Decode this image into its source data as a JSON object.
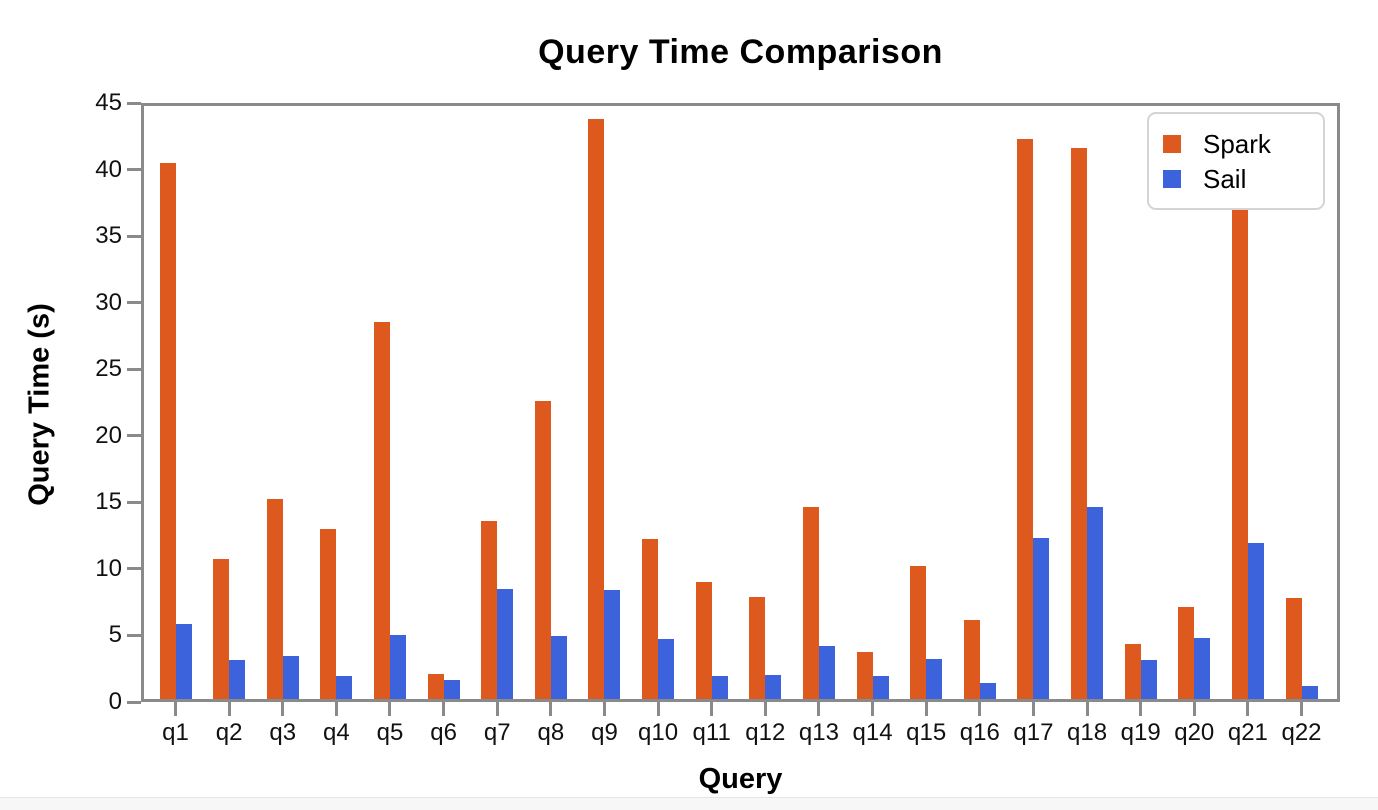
{
  "chart_data": {
    "type": "bar",
    "title": "Query Time Comparison",
    "xlabel": "Query",
    "ylabel": "Query Time (s)",
    "categories": [
      "q1",
      "q2",
      "q3",
      "q4",
      "q5",
      "q6",
      "q7",
      "q8",
      "q9",
      "q10",
      "q11",
      "q12",
      "q13",
      "q14",
      "q15",
      "q16",
      "q17",
      "q18",
      "q19",
      "q20",
      "q21",
      "q22"
    ],
    "series": [
      {
        "name": "Spark",
        "color": "#de591d",
        "values": [
          40.3,
          10.5,
          15.0,
          12.8,
          28.3,
          1.9,
          13.4,
          22.4,
          43.6,
          12.0,
          8.8,
          7.7,
          14.4,
          3.5,
          10.0,
          5.9,
          42.1,
          41.4,
          4.1,
          6.9,
          37.4,
          7.6
        ]
      },
      {
        "name": "Sail",
        "color": "#3d63dc",
        "values": [
          5.6,
          2.9,
          3.2,
          1.7,
          4.8,
          1.4,
          8.3,
          4.7,
          8.2,
          4.5,
          1.7,
          1.8,
          4.0,
          1.7,
          3.0,
          1.2,
          12.1,
          14.4,
          2.9,
          4.6,
          11.7,
          1.0
        ]
      }
    ],
    "ylim": [
      0,
      45
    ],
    "yticks": [
      0,
      5,
      10,
      15,
      20,
      25,
      30,
      35,
      40,
      45
    ],
    "grid": false,
    "legend_position": "upper right",
    "axis_color": "#8a8a8a",
    "tick_label_color": "#111111",
    "background_color": "#ffffff",
    "bottom_strip_color": "#f7f7f7"
  }
}
